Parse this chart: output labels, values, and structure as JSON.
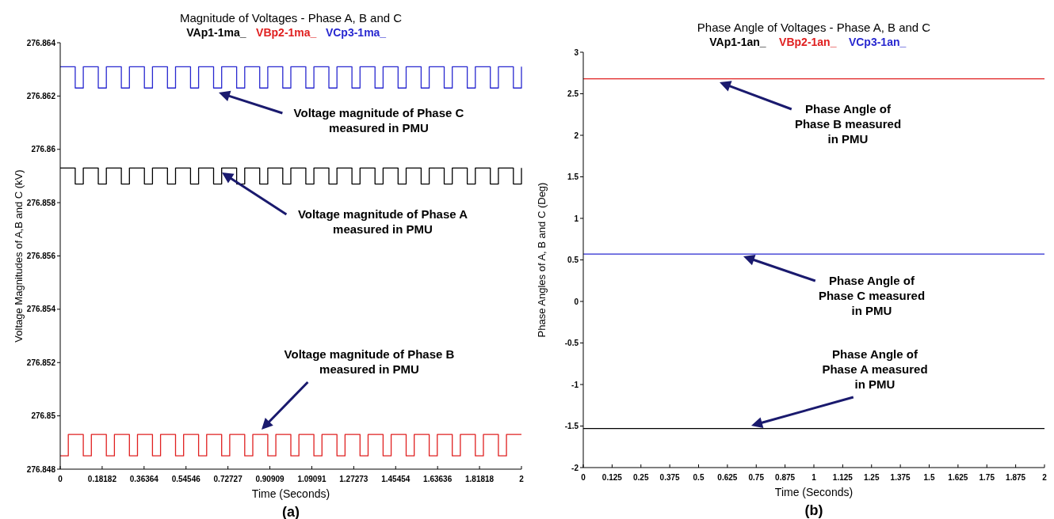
{
  "chart_data": [
    {
      "type": "step",
      "title": "Magnitude of Voltages - Phase A, B and C",
      "xlabel": "Time (Seconds)",
      "ylabel": "Voltage Magnitudes of A,B and C (kV)",
      "legend": "top",
      "xlim": [
        0,
        2
      ],
      "ylim": [
        276.848,
        276.864
      ],
      "xticks": [
        0,
        0.18182,
        0.36364,
        0.54546,
        0.72727,
        0.90909,
        1.09091,
        1.27273,
        1.45454,
        1.63636,
        1.81818,
        2
      ],
      "yticks": [
        276.848,
        276.85,
        276.852,
        276.854,
        276.856,
        276.858,
        276.86,
        276.862,
        276.864
      ],
      "series": [
        {
          "name": "VAp1-1ma_",
          "color": "#000000",
          "x": [
            0,
            0.065,
            0.1,
            0.165,
            0.2,
            0.265,
            0.3,
            0.365,
            0.4,
            0.465,
            0.5,
            0.565,
            0.6,
            0.665,
            0.7,
            0.765,
            0.8,
            0.865,
            0.9,
            0.965,
            1,
            1.065,
            1.1,
            1.165,
            1.2,
            1.265,
            1.3,
            1.365,
            1.4,
            1.465,
            1.5,
            1.565,
            1.6,
            1.665,
            1.7,
            1.765,
            1.8,
            1.865,
            1.9,
            1.965,
            2
          ],
          "values": [
            276.8593,
            276.8587,
            276.8593,
            276.8587,
            276.8593,
            276.8587,
            276.8593,
            276.8587,
            276.8593,
            276.8587,
            276.8593,
            276.8587,
            276.8593,
            276.8587,
            276.8593,
            276.8587,
            276.8593,
            276.8587,
            276.8593,
            276.8587,
            276.8593,
            276.8587,
            276.8593,
            276.8587,
            276.8593,
            276.8587,
            276.8593,
            276.8587,
            276.8593,
            276.8587,
            276.8593,
            276.8587,
            276.8593,
            276.8587,
            276.8593,
            276.8587,
            276.8593,
            276.8587,
            276.8593,
            276.8587,
            276.8593
          ]
        },
        {
          "name": "VBp2-1ma_",
          "color": "#e02020",
          "x": [
            0,
            0.035,
            0.1,
            0.135,
            0.2,
            0.235,
            0.3,
            0.335,
            0.4,
            0.435,
            0.5,
            0.535,
            0.6,
            0.635,
            0.7,
            0.735,
            0.8,
            0.835,
            0.9,
            0.935,
            1,
            1.035,
            1.1,
            1.135,
            1.2,
            1.235,
            1.3,
            1.335,
            1.4,
            1.435,
            1.5,
            1.535,
            1.6,
            1.635,
            1.7,
            1.735,
            1.8,
            1.835,
            1.9,
            1.935,
            2
          ],
          "values": [
            276.8485,
            276.8493,
            276.8485,
            276.8493,
            276.8485,
            276.8493,
            276.8485,
            276.8493,
            276.8485,
            276.8493,
            276.8485,
            276.8493,
            276.8485,
            276.8493,
            276.8485,
            276.8493,
            276.8485,
            276.8493,
            276.8485,
            276.8493,
            276.8485,
            276.8493,
            276.8485,
            276.8493,
            276.8485,
            276.8493,
            276.8485,
            276.8493,
            276.8485,
            276.8493,
            276.8485,
            276.8493,
            276.8485,
            276.8493,
            276.8485,
            276.8493,
            276.8485,
            276.8493,
            276.8485,
            276.8493,
            276.8493
          ]
        },
        {
          "name": "VCp3-1ma_",
          "color": "#2828d0",
          "x": [
            0,
            0.065,
            0.1,
            0.165,
            0.2,
            0.265,
            0.3,
            0.365,
            0.4,
            0.465,
            0.5,
            0.565,
            0.6,
            0.665,
            0.7,
            0.765,
            0.8,
            0.865,
            0.9,
            0.965,
            1,
            1.065,
            1.1,
            1.165,
            1.2,
            1.265,
            1.3,
            1.365,
            1.4,
            1.465,
            1.5,
            1.565,
            1.6,
            1.665,
            1.7,
            1.765,
            1.8,
            1.865,
            1.9,
            1.965,
            2
          ],
          "values": [
            276.8631,
            276.8623,
            276.8631,
            276.8623,
            276.8631,
            276.8623,
            276.8631,
            276.8623,
            276.8631,
            276.8623,
            276.8631,
            276.8623,
            276.8631,
            276.8623,
            276.8631,
            276.8623,
            276.8631,
            276.8623,
            276.8631,
            276.8623,
            276.8631,
            276.8623,
            276.8631,
            276.8623,
            276.8631,
            276.8623,
            276.8631,
            276.8623,
            276.8631,
            276.8623,
            276.8631,
            276.8623,
            276.8631,
            276.8623,
            276.8631,
            276.8623,
            276.8631,
            276.8623,
            276.8631,
            276.8623,
            276.8631
          ]
        }
      ],
      "annotations": [
        "Voltage magnitude of Phase C measured in PMU",
        "Voltage magnitude of Phase A measured in PMU",
        "Voltage magnitude of Phase B measured in PMU",
        "(a)"
      ]
    },
    {
      "type": "line",
      "title": "Phase Angle of Voltages - Phase A, B and C",
      "xlabel": "Time (Seconds)",
      "ylabel": "Phase Angles of A, B and C (Deg)",
      "legend": "top",
      "xlim": [
        0,
        2
      ],
      "ylim": [
        -2,
        3
      ],
      "xticks": [
        0,
        0.125,
        0.25,
        0.375,
        0.5,
        0.625,
        0.75,
        0.875,
        1,
        1.125,
        1.25,
        1.375,
        1.5,
        1.625,
        1.75,
        1.875,
        2
      ],
      "yticks": [
        -2,
        -1.5,
        -1,
        -0.5,
        0,
        0.5,
        1,
        1.5,
        2,
        2.5,
        3
      ],
      "x": [
        0,
        2
      ],
      "series": [
        {
          "name": "VAp1-1an_",
          "color": "#000000",
          "values": [
            -1.53,
            -1.53
          ]
        },
        {
          "name": "VBp2-1an_",
          "color": "#e02020",
          "values": [
            2.68,
            2.68
          ]
        },
        {
          "name": "VCp3-1an_",
          "color": "#2828d0",
          "values": [
            0.57,
            0.57
          ]
        }
      ],
      "annotations": [
        "Phase Angle of Phase B measured in PMU",
        "Phase Angle of Phase C measured in PMU",
        "Phase Angle of Phase A measured in PMU",
        "(b)"
      ]
    }
  ]
}
